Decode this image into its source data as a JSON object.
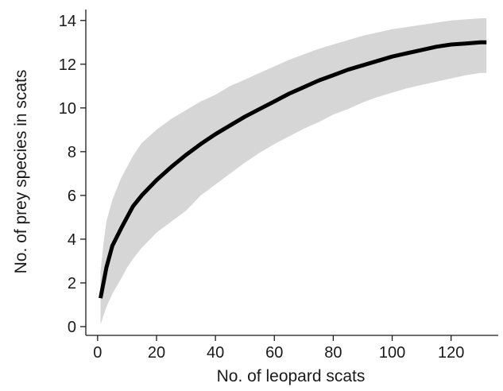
{
  "chart_data": {
    "type": "area",
    "xlabel": "No. of leopard scats",
    "ylabel": "No. of prey species in scats",
    "xlim": [
      -4,
      136
    ],
    "ylim": [
      -0.4,
      14.5
    ],
    "x_ticks": [
      0,
      20,
      40,
      60,
      80,
      100,
      120
    ],
    "y_ticks": [
      0,
      2,
      4,
      6,
      8,
      10,
      12,
      14
    ],
    "grid": false,
    "legend": "none",
    "colors": {
      "line": "#000000",
      "band": "#d6d6d6",
      "axis": "#1a1a1a"
    },
    "series": [
      {
        "role": "mean",
        "x": [
          1,
          2,
          3,
          5,
          8,
          10,
          12,
          15,
          20,
          25,
          30,
          35,
          40,
          45,
          50,
          55,
          60,
          65,
          70,
          75,
          80,
          85,
          90,
          95,
          100,
          105,
          110,
          115,
          120,
          125,
          130,
          132
        ],
        "y": [
          1.3,
          2.0,
          2.7,
          3.7,
          4.5,
          5.0,
          5.5,
          6.0,
          6.7,
          7.3,
          7.85,
          8.35,
          8.8,
          9.2,
          9.6,
          9.95,
          10.3,
          10.65,
          10.95,
          11.25,
          11.5,
          11.75,
          11.95,
          12.15,
          12.35,
          12.5,
          12.65,
          12.8,
          12.9,
          12.95,
          13.0,
          13.0
        ]
      },
      {
        "role": "upper",
        "x": [
          1,
          2,
          3,
          5,
          8,
          10,
          12,
          15,
          20,
          25,
          30,
          35,
          40,
          45,
          50,
          55,
          60,
          65,
          70,
          75,
          80,
          85,
          90,
          95,
          100,
          105,
          110,
          115,
          120,
          125,
          130,
          132
        ],
        "y": [
          2.5,
          3.8,
          4.8,
          5.8,
          6.8,
          7.3,
          7.8,
          8.4,
          9.0,
          9.5,
          9.9,
          10.3,
          10.6,
          11.0,
          11.3,
          11.6,
          11.9,
          12.2,
          12.45,
          12.7,
          12.9,
          13.1,
          13.3,
          13.45,
          13.6,
          13.7,
          13.8,
          13.9,
          14.0,
          14.05,
          14.1,
          14.1
        ]
      },
      {
        "role": "lower",
        "x": [
          1,
          2,
          3,
          5,
          8,
          10,
          12,
          15,
          20,
          25,
          30,
          35,
          40,
          45,
          50,
          55,
          60,
          65,
          70,
          75,
          80,
          85,
          90,
          95,
          100,
          105,
          110,
          115,
          120,
          125,
          130,
          132
        ],
        "y": [
          0.1,
          0.5,
          0.9,
          1.5,
          2.2,
          2.7,
          3.1,
          3.6,
          4.3,
          4.8,
          5.3,
          6.0,
          6.5,
          7.0,
          7.5,
          7.95,
          8.35,
          8.7,
          9.05,
          9.35,
          9.7,
          9.95,
          10.25,
          10.5,
          10.7,
          10.9,
          11.05,
          11.2,
          11.35,
          11.5,
          11.6,
          11.6
        ]
      }
    ]
  }
}
